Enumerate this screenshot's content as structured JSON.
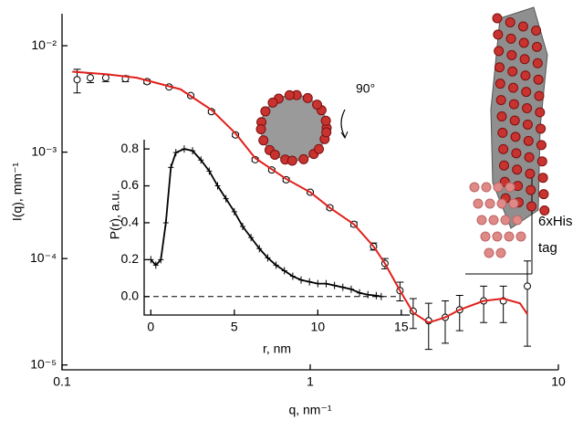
{
  "chart_data": [
    {
      "type": "scatter",
      "xlabel": "q, nm⁻¹",
      "ylabel": "I(q), mm⁻¹",
      "xscale": "log",
      "yscale": "log",
      "xlim": [
        0.1,
        10
      ],
      "ylim": [
        9e-06,
        0.02
      ],
      "xticks": [
        0.1,
        1,
        10
      ],
      "yticks": [
        {
          "value": 1e-05,
          "label": "10⁻⁵"
        },
        {
          "value": 0.0001,
          "label": "10⁻⁴"
        },
        {
          "value": 0.001,
          "label": "10⁻³"
        },
        {
          "value": 0.01,
          "label": "10⁻²"
        }
      ],
      "x": [
        0.115,
        0.13,
        0.15,
        0.18,
        0.22,
        0.27,
        0.33,
        0.4,
        0.5,
        0.6,
        0.7,
        0.8,
        1.0,
        1.2,
        1.5,
        1.8,
        2.0,
        2.3,
        2.6,
        3.0,
        3.5,
        4.0,
        5.0,
        6.0,
        7.5
      ],
      "values": [
        0.0048,
        0.005,
        0.005,
        0.0049,
        0.0046,
        0.0041,
        0.0034,
        0.0024,
        0.00145,
        0.00085,
        0.00068,
        0.00055,
        0.00042,
        0.0003,
        0.00021,
        0.00013,
        9e-05,
        5e-05,
        3.2e-05,
        2.6e-05,
        2.8e-05,
        3.3e-05,
        4e-05,
        4e-05,
        5.5e-05
      ],
      "errors": [
        0.0012,
        0.0005,
        0.0004,
        0.0003,
        0.0002,
        0.0001,
        0.0001,
        8e-05,
        5e-05,
        3e-05,
        2e-05,
        2e-05,
        1e-05,
        1e-05,
        1e-05,
        1e-05,
        1e-05,
        1e-05,
        1e-05,
        1.2e-05,
        1.2e-05,
        1.2e-05,
        1.5e-05,
        1.5e-05,
        4e-05
      ],
      "marker_color": "#ffffff",
      "fit": {
        "color": "#e0201b",
        "x": [
          0.11,
          0.15,
          0.2,
          0.3,
          0.4,
          0.5,
          0.6,
          0.8,
          1.0,
          1.2,
          1.5,
          1.8,
          2.0,
          2.3,
          2.6,
          3.0,
          3.5,
          4.0,
          5.0,
          6.0,
          7.0,
          7.5
        ],
        "values": [
          0.0057,
          0.0054,
          0.005,
          0.0039,
          0.0025,
          0.0015,
          0.00088,
          0.00056,
          0.00042,
          0.0003,
          0.00021,
          0.00013,
          9e-05,
          5e-05,
          3.1e-05,
          2.5e-05,
          2.8e-05,
          3.3e-05,
          4e-05,
          4.2e-05,
          3.8e-05,
          3e-05
        ]
      },
      "annotations": [
        "90°",
        "6xHis",
        "tag"
      ]
    },
    {
      "type": "line",
      "xlabel": "r, nm",
      "ylabel": "P(r), a.u.",
      "xlim": [
        -0.4,
        15.5
      ],
      "ylim": [
        -0.1,
        0.85
      ],
      "xticks": [
        0,
        5,
        10,
        15
      ],
      "yticks": [
        {
          "value": 0,
          "label": "0.0"
        },
        0.2,
        0.4,
        0.6,
        0.8
      ],
      "hline": 0,
      "color": "#000000",
      "x": [
        0,
        0.3,
        0.6,
        0.9,
        1.2,
        1.5,
        2,
        2.5,
        3,
        3.5,
        4,
        4.5,
        5,
        5.5,
        6,
        6.5,
        7,
        7.5,
        8,
        8.5,
        9,
        9.5,
        10,
        10.5,
        11,
        11.5,
        12,
        12.5,
        13,
        13.5,
        13.8
      ],
      "values": [
        0.2,
        0.17,
        0.2,
        0.4,
        0.7,
        0.78,
        0.8,
        0.79,
        0.74,
        0.68,
        0.6,
        0.53,
        0.46,
        0.38,
        0.32,
        0.26,
        0.21,
        0.17,
        0.14,
        0.11,
        0.09,
        0.08,
        0.07,
        0.07,
        0.06,
        0.05,
        0.04,
        0.02,
        0.01,
        0.005,
        0
      ]
    }
  ]
}
